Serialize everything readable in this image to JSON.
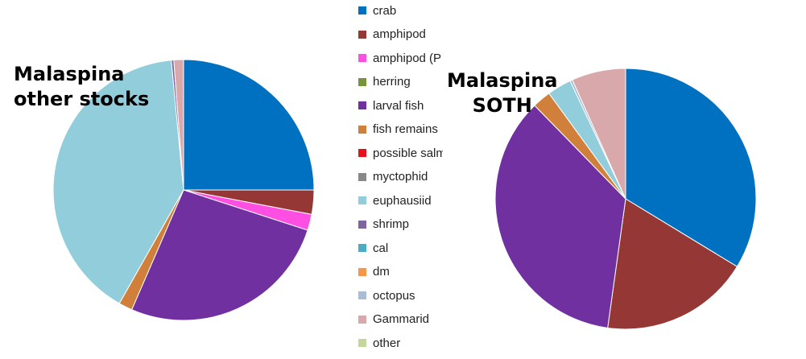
{
  "chart_data": [
    {
      "type": "pie",
      "title": "Malaspina other stocks",
      "start": "12 o'clock, clockwise",
      "slices": [
        {
          "label": "crab",
          "value": 25.0,
          "color": "#0070C0"
        },
        {
          "label": "amphipod",
          "value": 3.0,
          "color": "#953735"
        },
        {
          "label": "amphipod (P",
          "value": 2.0,
          "color": "#FF4FE3"
        },
        {
          "label": "herring",
          "value": 0.0,
          "color": "#77933C"
        },
        {
          "label": "larval fish",
          "value": 26.5,
          "color": "#7030A0"
        },
        {
          "label": "fish remains",
          "value": 1.7,
          "color": "#D0803A"
        },
        {
          "label": "possible salm",
          "value": 0.0,
          "color": "#E8101A"
        },
        {
          "label": "myctophid",
          "value": 0.0,
          "color": "#888888"
        },
        {
          "label": "euphausiid",
          "value": 40.3,
          "color": "#92CDDC"
        },
        {
          "label": "shrimp",
          "value": 0.3,
          "color": "#8064A2"
        },
        {
          "label": "cal",
          "value": 0.0,
          "color": "#4BACC6"
        },
        {
          "label": "dm",
          "value": 0.0,
          "color": "#F79646"
        },
        {
          "label": "octopus",
          "value": 0.0,
          "color": "#A9BDD8"
        },
        {
          "label": "Gammarid",
          "value": 1.2,
          "color": "#D9A8AA"
        },
        {
          "label": "other",
          "value": 0.0,
          "color": "#C3D69B"
        }
      ]
    },
    {
      "type": "pie",
      "title": "Malaspina SOTH",
      "start": "12 o'clock, clockwise",
      "slices": [
        {
          "label": "crab",
          "value": 33.7,
          "color": "#0070C0"
        },
        {
          "label": "amphipod",
          "value": 18.5,
          "color": "#953735"
        },
        {
          "label": "amphipod (P",
          "value": 0.0,
          "color": "#FF4FE3"
        },
        {
          "label": "herring",
          "value": 0.0,
          "color": "#77933C"
        },
        {
          "label": "larval fish",
          "value": 35.5,
          "color": "#7030A0"
        },
        {
          "label": "fish remains",
          "value": 2.3,
          "color": "#D0803A"
        },
        {
          "label": "possible salm",
          "value": 0.0,
          "color": "#E8101A"
        },
        {
          "label": "myctophid",
          "value": 0.0,
          "color": "#888888"
        },
        {
          "label": "euphausiid",
          "value": 3.0,
          "color": "#92CDDC"
        },
        {
          "label": "shrimp",
          "value": 0.0,
          "color": "#8064A2"
        },
        {
          "label": "cal",
          "value": 0.0,
          "color": "#4BACC6"
        },
        {
          "label": "dm",
          "value": 0.0,
          "color": "#F79646"
        },
        {
          "label": "octopus",
          "value": 0.3,
          "color": "#A9BDD8"
        },
        {
          "label": "Gammarid",
          "value": 6.7,
          "color": "#D9A8AA"
        },
        {
          "label": "other",
          "value": 0.0,
          "color": "#C3D69B"
        }
      ]
    }
  ],
  "legend": {
    "placement": "between charts",
    "items": [
      {
        "label": "crab",
        "color": "#0070C0"
      },
      {
        "label": "amphipod",
        "color": "#953735"
      },
      {
        "label": "amphipod (P",
        "color": "#FF4FE3"
      },
      {
        "label": "herring",
        "color": "#77933C"
      },
      {
        "label": "larval fish",
        "color": "#7030A0"
      },
      {
        "label": "fish remains",
        "color": "#D0803A"
      },
      {
        "label": "possible salm",
        "color": "#E8101A"
      },
      {
        "label": "myctophid",
        "color": "#888888"
      },
      {
        "label": "euphausiid",
        "color": "#92CDDC"
      },
      {
        "label": "shrimp",
        "color": "#8064A2"
      },
      {
        "label": "cal",
        "color": "#4BACC6"
      },
      {
        "label": "dm",
        "color": "#F79646"
      },
      {
        "label": "octopus",
        "color": "#A9BDD8"
      },
      {
        "label": "Gammarid",
        "color": "#D9A8AA"
      },
      {
        "label": "other",
        "color": "#C3D69B"
      }
    ]
  }
}
